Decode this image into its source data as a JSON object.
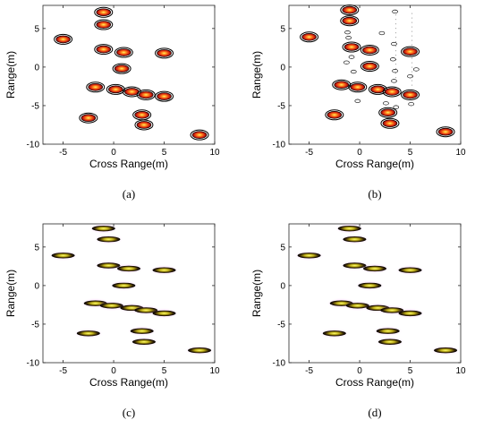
{
  "chart_data": [
    {
      "type": "scatter",
      "panel_label": "(a)",
      "xlabel": "Cross Range(m)",
      "ylabel": "Range(m)",
      "xlim": [
        -7,
        10
      ],
      "ylim": [
        -10,
        8
      ],
      "xticks": [
        "-5",
        "0",
        "5",
        "10"
      ],
      "yticks": [
        "5",
        "0",
        "-5",
        "-10"
      ],
      "style": "contour",
      "points": [
        {
          "x": -1.0,
          "y": 7.1
        },
        {
          "x": -1.0,
          "y": 5.5
        },
        {
          "x": -5.0,
          "y": 3.6
        },
        {
          "x": -1.0,
          "y": 2.3
        },
        {
          "x": 1.0,
          "y": 1.9
        },
        {
          "x": 5.0,
          "y": 1.8
        },
        {
          "x": 0.8,
          "y": -0.2
        },
        {
          "x": -1.8,
          "y": -2.6
        },
        {
          "x": 0.2,
          "y": -2.9
        },
        {
          "x": 1.8,
          "y": -3.2
        },
        {
          "x": 3.2,
          "y": -3.6
        },
        {
          "x": 5.0,
          "y": -3.8
        },
        {
          "x": -2.5,
          "y": -6.6
        },
        {
          "x": 2.8,
          "y": -6.2
        },
        {
          "x": 3.0,
          "y": -7.5
        },
        {
          "x": 8.5,
          "y": -8.8
        }
      ]
    },
    {
      "type": "scatter",
      "panel_label": "(b)",
      "xlabel": "Cross Range(m)",
      "ylabel": "Range(m)",
      "xlim": [
        -7,
        10
      ],
      "ylim": [
        -10,
        8
      ],
      "xticks": [
        "-5",
        "0",
        "5",
        "10"
      ],
      "yticks": [
        "5",
        "0",
        "-5",
        "-10"
      ],
      "style": "contour",
      "points": [
        {
          "x": -1.0,
          "y": 7.4
        },
        {
          "x": -1.0,
          "y": 6.0
        },
        {
          "x": -5.0,
          "y": 3.9
        },
        {
          "x": -0.8,
          "y": 2.6
        },
        {
          "x": 1.0,
          "y": 2.2
        },
        {
          "x": 5.0,
          "y": 2.0
        },
        {
          "x": 1.0,
          "y": 0.1
        },
        {
          "x": -1.8,
          "y": -2.3
        },
        {
          "x": -0.2,
          "y": -2.6
        },
        {
          "x": 1.8,
          "y": -2.9
        },
        {
          "x": 3.2,
          "y": -3.2
        },
        {
          "x": 5.0,
          "y": -3.6
        },
        {
          "x": -2.5,
          "y": -6.2
        },
        {
          "x": 2.8,
          "y": -5.9
        },
        {
          "x": 3.0,
          "y": -7.3
        },
        {
          "x": 8.5,
          "y": -8.4
        }
      ]
    },
    {
      "type": "scatter",
      "panel_label": "(c)",
      "xlabel": "Cross Range(m)",
      "ylabel": "Range(m)",
      "xlim": [
        -7,
        10
      ],
      "ylim": [
        -10,
        8
      ],
      "xticks": [
        "-5",
        "0",
        "5",
        "10"
      ],
      "yticks": [
        "5",
        "0",
        "-5",
        "-10"
      ],
      "style": "ellipse",
      "points": [
        {
          "x": -1.0,
          "y": 7.4
        },
        {
          "x": -0.5,
          "y": 6.0
        },
        {
          "x": -5.0,
          "y": 3.9
        },
        {
          "x": -0.5,
          "y": 2.6
        },
        {
          "x": 1.5,
          "y": 2.2
        },
        {
          "x": 5.0,
          "y": 2.0
        },
        {
          "x": 1.0,
          "y": 0.0
        },
        {
          "x": -1.8,
          "y": -2.3
        },
        {
          "x": -0.2,
          "y": -2.6
        },
        {
          "x": 1.8,
          "y": -2.9
        },
        {
          "x": 3.2,
          "y": -3.2
        },
        {
          "x": 5.0,
          "y": -3.6
        },
        {
          "x": -2.5,
          "y": -6.2
        },
        {
          "x": 2.8,
          "y": -5.9
        },
        {
          "x": 3.0,
          "y": -7.3
        },
        {
          "x": 8.5,
          "y": -8.4
        }
      ]
    },
    {
      "type": "scatter",
      "panel_label": "(d)",
      "xlabel": "Cross Range(m)",
      "ylabel": "Range(m)",
      "xlim": [
        -7,
        10
      ],
      "ylim": [
        -10,
        8
      ],
      "xticks": [
        "-5",
        "0",
        "5",
        "10"
      ],
      "yticks": [
        "5",
        "0",
        "-5",
        "-10"
      ],
      "style": "ellipse",
      "points": [
        {
          "x": -1.0,
          "y": 7.4
        },
        {
          "x": -0.5,
          "y": 6.0
        },
        {
          "x": -5.0,
          "y": 3.9
        },
        {
          "x": -0.5,
          "y": 2.6
        },
        {
          "x": 1.5,
          "y": 2.2
        },
        {
          "x": 5.0,
          "y": 2.0
        },
        {
          "x": 1.0,
          "y": 0.0
        },
        {
          "x": -1.8,
          "y": -2.3
        },
        {
          "x": -0.2,
          "y": -2.6
        },
        {
          "x": 1.8,
          "y": -2.9
        },
        {
          "x": 3.2,
          "y": -3.2
        },
        {
          "x": 5.0,
          "y": -3.6
        },
        {
          "x": -2.5,
          "y": -6.2
        },
        {
          "x": 2.8,
          "y": -5.9
        },
        {
          "x": 3.0,
          "y": -7.3
        },
        {
          "x": 8.5,
          "y": -8.4
        }
      ]
    }
  ]
}
